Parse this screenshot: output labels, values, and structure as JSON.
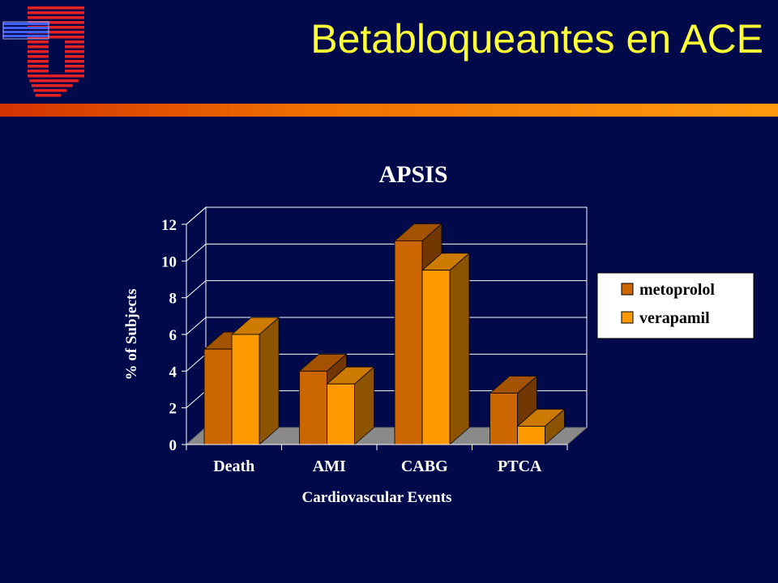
{
  "slide": {
    "title": "Betabloqueantes en ACE",
    "colors": {
      "background": "#000a4a",
      "title": "#ffff33",
      "accent": "#f07000"
    }
  },
  "logo": {
    "icon": "hospital-logo-icon"
  },
  "chart_data": {
    "type": "bar",
    "style": "3d-clustered",
    "title": "APSIS",
    "xlabel": "Cardiovascular Events",
    "ylabel": "% of Subjects",
    "categories": [
      "Death",
      "AMI",
      "CABG",
      "PTCA"
    ],
    "series": [
      {
        "name": "metoprolol",
        "values": [
          5.2,
          4.0,
          11.1,
          2.8
        ],
        "color": "#cc6600"
      },
      {
        "name": "verapamil",
        "values": [
          6.0,
          3.3,
          9.5,
          1.0
        ],
        "color": "#ff9900"
      }
    ],
    "ylim": [
      0,
      12
    ],
    "yticks": [
      0,
      2,
      4,
      6,
      8,
      10,
      12
    ],
    "grid": true,
    "legend": "right"
  }
}
